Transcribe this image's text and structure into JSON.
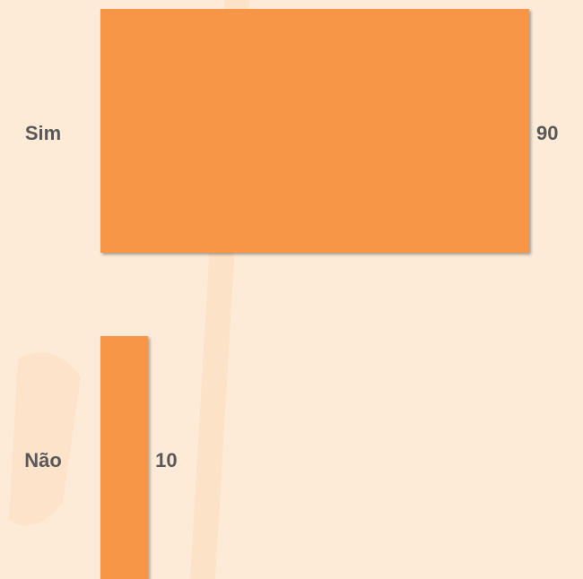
{
  "chart_data": {
    "type": "bar",
    "orientation": "horizontal",
    "categories": [
      "Sim",
      "Não"
    ],
    "values": [
      90,
      10
    ],
    "color": "#f79646"
  }
}
